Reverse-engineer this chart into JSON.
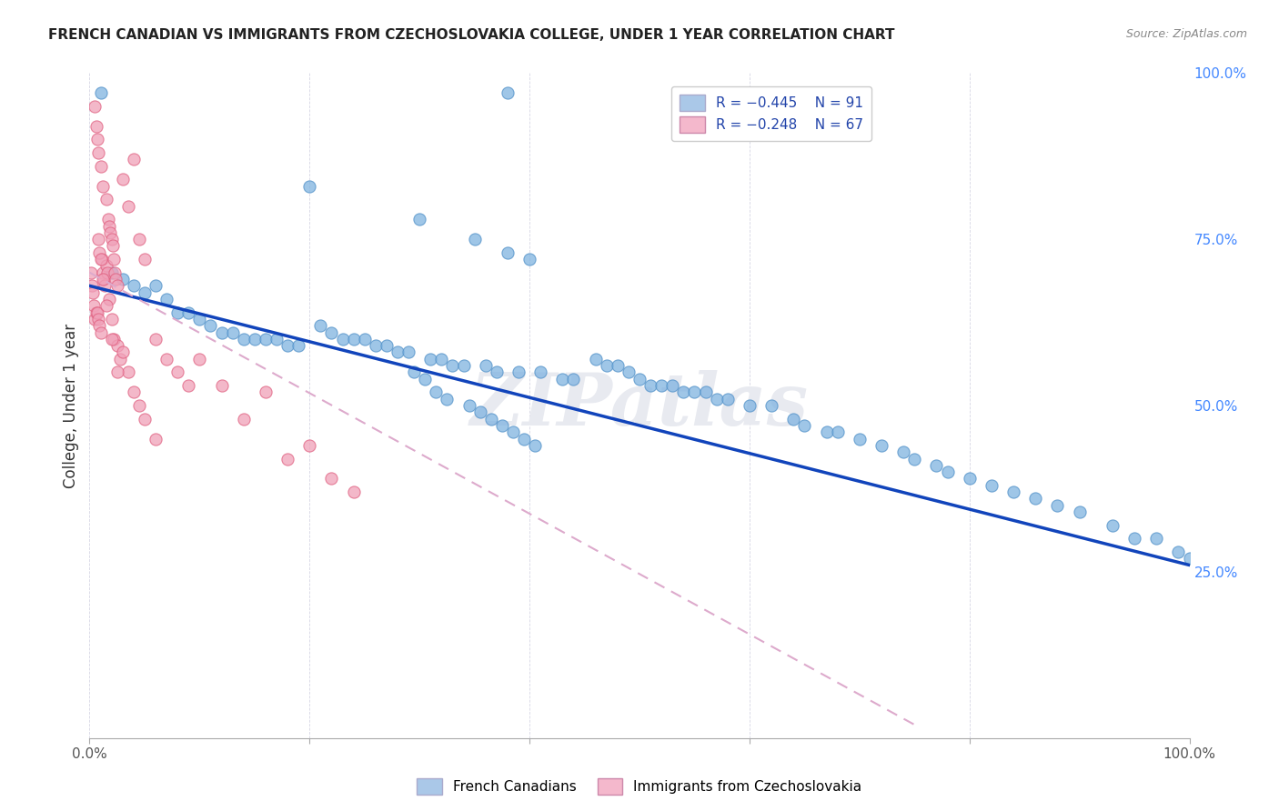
{
  "title": "FRENCH CANADIAN VS IMMIGRANTS FROM CZECHOSLOVAKIA COLLEGE, UNDER 1 YEAR CORRELATION CHART",
  "source": "Source: ZipAtlas.com",
  "ylabel": "College, Under 1 year",
  "right_yticks": [
    "100.0%",
    "75.0%",
    "50.0%",
    "25.0%"
  ],
  "right_ytick_vals": [
    1.0,
    0.75,
    0.5,
    0.25
  ],
  "blue_color": "#7fb3e0",
  "pink_color": "#f0a0b8",
  "blue_edge": "#5090c8",
  "pink_edge": "#e06080",
  "blue_fill": "#aac8e8",
  "pink_fill": "#f4b8cc",
  "trend_blue": "#1144bb",
  "trend_pink": "#ddaacc",
  "watermark": "ZIPatlas",
  "xlim": [
    0.0,
    1.0
  ],
  "ylim": [
    0.0,
    1.0
  ],
  "blue_trend_x0": 0.0,
  "blue_trend_y0": 0.68,
  "blue_trend_x1": 1.0,
  "blue_trend_y1": 0.26,
  "pink_trend_x0": 0.0,
  "pink_trend_y0": 0.7,
  "pink_trend_x1": 0.75,
  "pink_trend_y1": 0.02,
  "blue_points_x": [
    0.38,
    0.01,
    0.2,
    0.3,
    0.35,
    0.38,
    0.4,
    0.02,
    0.03,
    0.04,
    0.05,
    0.06,
    0.07,
    0.08,
    0.09,
    0.1,
    0.11,
    0.12,
    0.13,
    0.14,
    0.15,
    0.16,
    0.17,
    0.18,
    0.19,
    0.21,
    0.22,
    0.23,
    0.24,
    0.25,
    0.26,
    0.27,
    0.28,
    0.29,
    0.31,
    0.32,
    0.33,
    0.34,
    0.36,
    0.37,
    0.39,
    0.41,
    0.43,
    0.44,
    0.46,
    0.47,
    0.48,
    0.49,
    0.5,
    0.51,
    0.52,
    0.53,
    0.54,
    0.55,
    0.56,
    0.57,
    0.58,
    0.6,
    0.62,
    0.64,
    0.65,
    0.67,
    0.68,
    0.7,
    0.72,
    0.74,
    0.75,
    0.77,
    0.78,
    0.8,
    0.82,
    0.84,
    0.86,
    0.88,
    0.9,
    0.93,
    0.95,
    0.97,
    0.99,
    1.0,
    0.295,
    0.305,
    0.315,
    0.325,
    0.345,
    0.355,
    0.365,
    0.375,
    0.385,
    0.395,
    0.405
  ],
  "blue_points_y": [
    0.97,
    0.97,
    0.83,
    0.78,
    0.75,
    0.73,
    0.72,
    0.7,
    0.69,
    0.68,
    0.67,
    0.68,
    0.66,
    0.64,
    0.64,
    0.63,
    0.62,
    0.61,
    0.61,
    0.6,
    0.6,
    0.6,
    0.6,
    0.59,
    0.59,
    0.62,
    0.61,
    0.6,
    0.6,
    0.6,
    0.59,
    0.59,
    0.58,
    0.58,
    0.57,
    0.57,
    0.56,
    0.56,
    0.56,
    0.55,
    0.55,
    0.55,
    0.54,
    0.54,
    0.57,
    0.56,
    0.56,
    0.55,
    0.54,
    0.53,
    0.53,
    0.53,
    0.52,
    0.52,
    0.52,
    0.51,
    0.51,
    0.5,
    0.5,
    0.48,
    0.47,
    0.46,
    0.46,
    0.45,
    0.44,
    0.43,
    0.42,
    0.41,
    0.4,
    0.39,
    0.38,
    0.37,
    0.36,
    0.35,
    0.34,
    0.32,
    0.3,
    0.3,
    0.28,
    0.27,
    0.55,
    0.54,
    0.52,
    0.51,
    0.5,
    0.49,
    0.48,
    0.47,
    0.46,
    0.45,
    0.44
  ],
  "pink_points_x": [
    0.001,
    0.002,
    0.003,
    0.004,
    0.005,
    0.006,
    0.007,
    0.008,
    0.009,
    0.01,
    0.011,
    0.012,
    0.013,
    0.014,
    0.015,
    0.016,
    0.017,
    0.018,
    0.019,
    0.02,
    0.021,
    0.022,
    0.023,
    0.024,
    0.025,
    0.03,
    0.035,
    0.04,
    0.045,
    0.05,
    0.06,
    0.07,
    0.08,
    0.09,
    0.1,
    0.12,
    0.14,
    0.16,
    0.18,
    0.2,
    0.22,
    0.24,
    0.005,
    0.006,
    0.007,
    0.008,
    0.01,
    0.012,
    0.015,
    0.018,
    0.02,
    0.022,
    0.025,
    0.028,
    0.03,
    0.035,
    0.04,
    0.045,
    0.05,
    0.06,
    0.008,
    0.009,
    0.01,
    0.012,
    0.015,
    0.02,
    0.025
  ],
  "pink_points_y": [
    0.7,
    0.68,
    0.67,
    0.65,
    0.63,
    0.64,
    0.64,
    0.63,
    0.62,
    0.61,
    0.72,
    0.7,
    0.69,
    0.68,
    0.71,
    0.7,
    0.78,
    0.77,
    0.76,
    0.75,
    0.74,
    0.72,
    0.7,
    0.69,
    0.68,
    0.84,
    0.8,
    0.87,
    0.75,
    0.72,
    0.6,
    0.57,
    0.55,
    0.53,
    0.57,
    0.53,
    0.48,
    0.52,
    0.42,
    0.44,
    0.39,
    0.37,
    0.95,
    0.92,
    0.9,
    0.88,
    0.86,
    0.83,
    0.81,
    0.66,
    0.63,
    0.6,
    0.59,
    0.57,
    0.58,
    0.55,
    0.52,
    0.5,
    0.48,
    0.45,
    0.75,
    0.73,
    0.72,
    0.69,
    0.65,
    0.6,
    0.55
  ]
}
